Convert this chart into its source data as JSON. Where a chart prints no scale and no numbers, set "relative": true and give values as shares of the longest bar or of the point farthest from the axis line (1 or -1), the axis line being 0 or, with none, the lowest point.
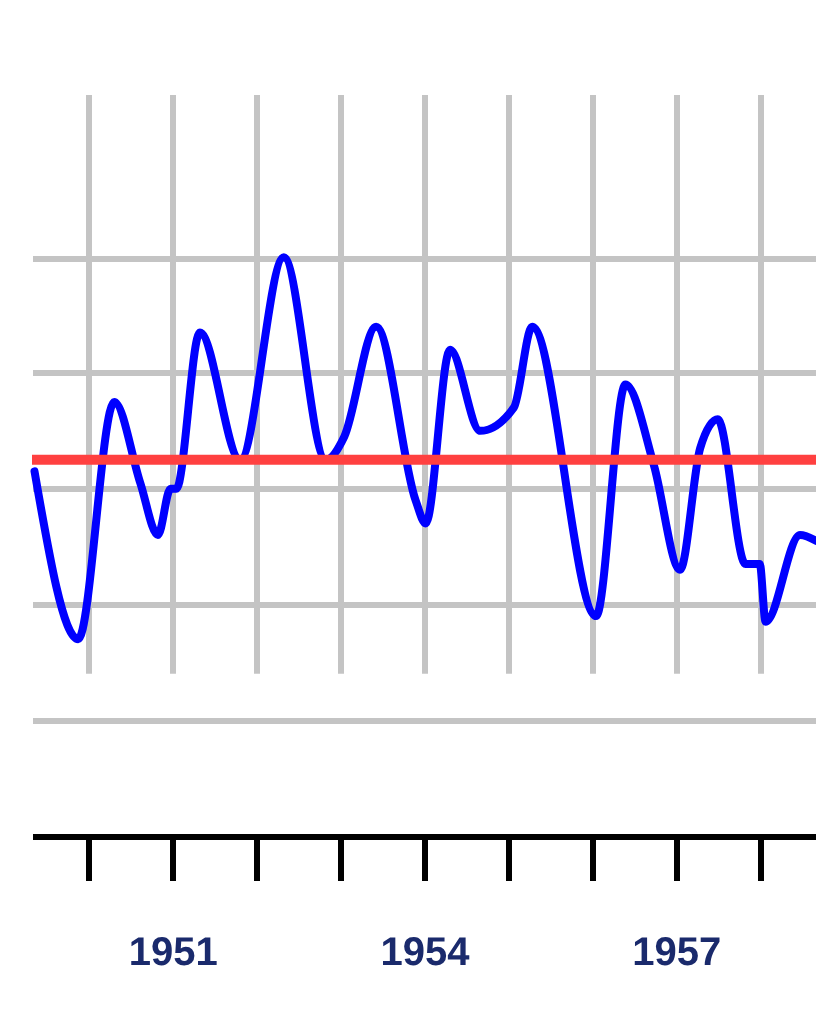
{
  "chart_data": {
    "type": "line",
    "relative": true,
    "color": "#0000ff",
    "grid": true,
    "x": [
      1949.36,
      1949.88,
      1950.31,
      1950.62,
      1950.83,
      1950.98,
      1951.05,
      1951.33,
      1951.81,
      1952.33,
      1952.83,
      1953.05,
      1953.43,
      1953.9,
      1954.02,
      1954.31,
      1954.67,
      1955.07,
      1955.29,
      1956.05,
      1956.4,
      1956.74,
      1957.05,
      1957.29,
      1957.5,
      1957.83,
      1958.0,
      1958.07,
      1958.48,
      1958.67
    ],
    "values": [
      0.63,
      0.34,
      0.75,
      0.61,
      0.52,
      0.6,
      0.6,
      0.87,
      0.65,
      1,
      0.65,
      0.69,
      0.88,
      0.58,
      0.54,
      0.84,
      0.7,
      0.74,
      0.88,
      0.38,
      0.78,
      0.64,
      0.46,
      0.67,
      0.72,
      0.47,
      0.47,
      0.37,
      0.52,
      0.51
    ],
    "xlim": [
      1949.33,
      1958.67
    ],
    "xticks": [
      {
        "value": 1950,
        "label": null
      },
      1951,
      {
        "value": 1952,
        "label": null
      },
      {
        "value": 1953,
        "label": null
      },
      1954,
      {
        "value": 1955,
        "label": null
      },
      {
        "value": 1956,
        "label": null
      },
      1957,
      {
        "value": 1958,
        "label": null
      }
    ],
    "ref_lines": [
      {
        "axis": "y",
        "value": 0.65,
        "color": "#ff4040"
      }
    ]
  }
}
